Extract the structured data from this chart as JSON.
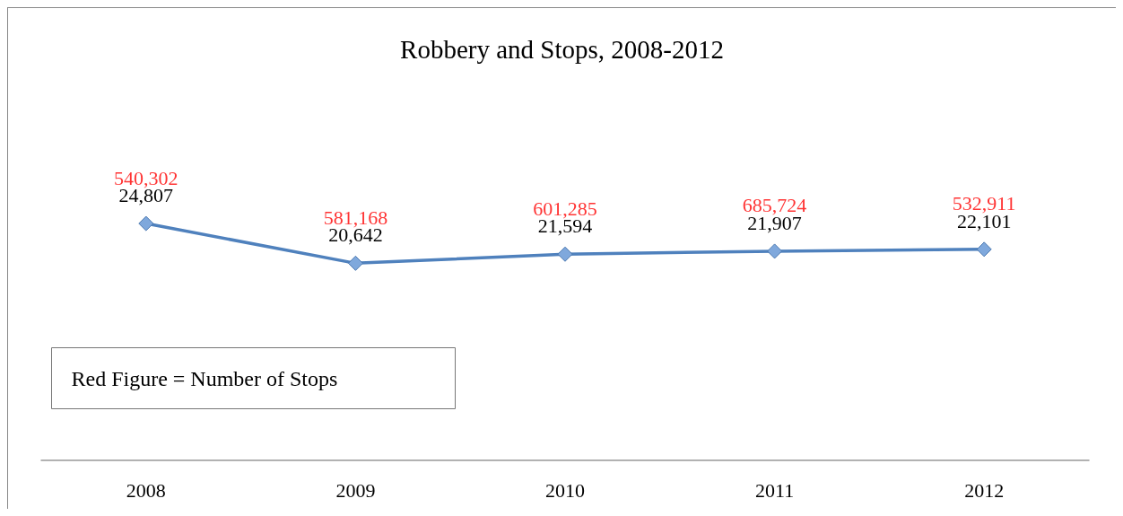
{
  "chart_data": {
    "type": "line",
    "title": "Robbery and Stops, 2008-2012",
    "categories": [
      "2008",
      "2009",
      "2010",
      "2011",
      "2012"
    ],
    "series": [
      {
        "color": "#4f81bd",
        "values": [
          24807,
          20642,
          21594,
          21907,
          22101
        ],
        "value_labels": [
          "24,807",
          "20,642",
          "21,594",
          "21,907",
          "22,101"
        ]
      }
    ],
    "annotations": [
      {
        "text": "540,302",
        "x": "2008",
        "y": 24807
      },
      {
        "text": "581,168",
        "x": "2009",
        "y": 20642
      },
      {
        "text": "601,285",
        "x": "2010",
        "y": 21594
      },
      {
        "text": "685,724",
        "x": "2011",
        "y": 21907
      },
      {
        "text": "532,911",
        "x": "2012",
        "y": 22101
      },
      "Red Figure = Number of Stops"
    ],
    "marker": "diamond",
    "line_style": "solid",
    "grid": false,
    "tick_labels": "x"
  }
}
